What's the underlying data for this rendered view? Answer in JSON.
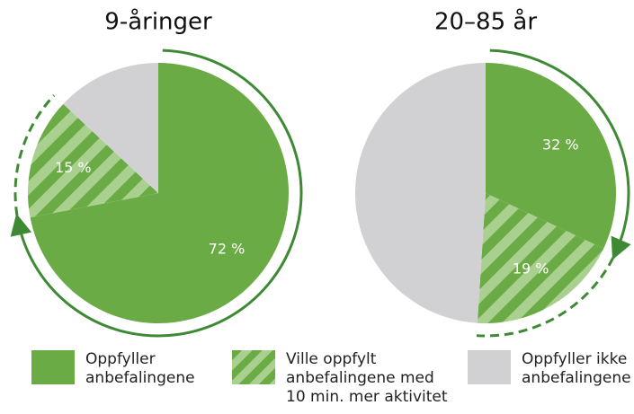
{
  "legend": [
    {
      "label": "Oppfyller anbefalingene",
      "color": "#6aab45"
    },
    {
      "label": "Ville oppfylt anbefalingene med 10 min. mer aktivitet",
      "color": "hatch"
    },
    {
      "label": "Oppfyller ikke anbefalingene",
      "color": "#d1d1d3"
    }
  ],
  "chart_data": [
    {
      "type": "pie",
      "title": "9-åringer",
      "values": [
        72,
        15,
        13
      ],
      "value_labels": [
        "72 %",
        "15 %",
        null
      ]
    },
    {
      "type": "pie",
      "title": "20–85 år",
      "values": [
        32,
        19,
        49
      ],
      "value_labels": [
        "32 %",
        "19 %",
        null
      ]
    }
  ]
}
